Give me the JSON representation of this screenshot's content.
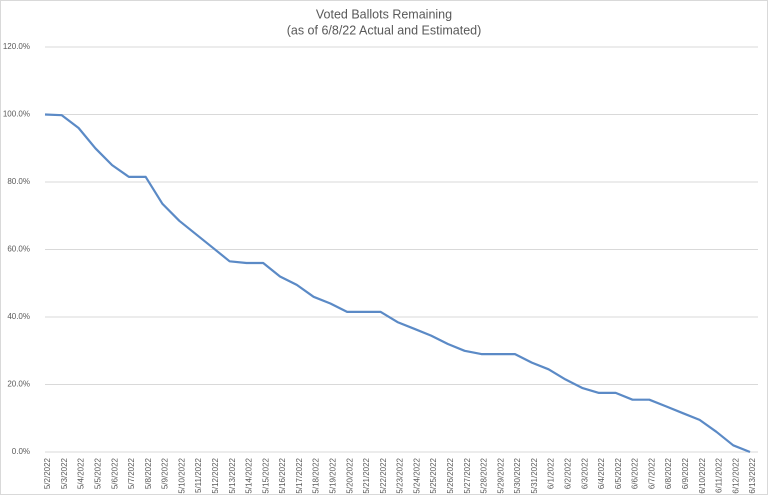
{
  "chart_data": {
    "type": "line",
    "title": "Voted Ballots Remaining",
    "subtitle": "(as of 6/8/22 Actual and Estimated)",
    "categories": [
      "5/2/2022",
      "5/3/2022",
      "5/4/2022",
      "5/5/2022",
      "5/6/2022",
      "5/7/2022",
      "5/8/2022",
      "5/9/2022",
      "5/10/2022",
      "5/11/2022",
      "5/12/2022",
      "5/13/2022",
      "5/14/2022",
      "5/15/2022",
      "5/16/2022",
      "5/17/2022",
      "5/18/2022",
      "5/19/2022",
      "5/20/2022",
      "5/21/2022",
      "5/22/2022",
      "5/23/2022",
      "5/24/2022",
      "5/25/2022",
      "5/26/2022",
      "5/27/2022",
      "5/28/2022",
      "5/29/2022",
      "5/30/2022",
      "5/31/2022",
      "6/1/2022",
      "6/2/2022",
      "6/3/2022",
      "6/4/2022",
      "6/5/2022",
      "6/6/2022",
      "6/7/2022",
      "6/8/2022",
      "6/9/2022",
      "6/10/2022",
      "6/11/2022",
      "6/12/2022",
      "6/13/2022"
    ],
    "values": [
      100,
      99.8,
      96,
      90,
      85,
      81.5,
      81.5,
      73.5,
      68.5,
      64.5,
      60.5,
      56.5,
      56,
      56,
      52,
      49.5,
      46,
      44,
      41.5,
      41.5,
      41.5,
      38.5,
      36.5,
      34.5,
      32,
      30,
      29,
      29,
      29,
      26.5,
      24.5,
      21.5,
      19,
      17.5,
      17.5,
      15.5,
      15.5,
      13.5,
      11.5,
      9.5,
      6,
      2,
      0
    ],
    "color": "#5b8ac6",
    "ylim": [
      0,
      120
    ],
    "yticks": [
      {
        "value": 0,
        "label": "0.0%"
      },
      {
        "value": 20,
        "label": "20.0%"
      },
      {
        "value": 40,
        "label": "40.0%"
      },
      {
        "value": 60,
        "label": "60.0%"
      },
      {
        "value": 80,
        "label": "80.0%"
      },
      {
        "value": 100,
        "label": "100.0%"
      },
      {
        "value": 120,
        "label": "120.0%"
      }
    ],
    "grid": true
  }
}
